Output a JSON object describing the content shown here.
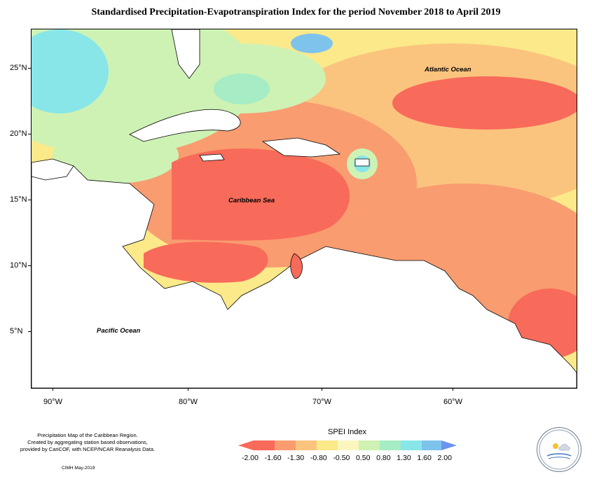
{
  "title": "Standardised Precipitation-Evapotranspiration Index for the period November 2018 to April 2019",
  "map": {
    "latitude_labels": [
      "25°N",
      "20°N",
      "15°N",
      "10°N",
      "5°N"
    ],
    "longitude_labels": [
      "90°W",
      "80°W",
      "70°W",
      "60°W"
    ],
    "region_labels": {
      "atlantic": "Atlantic Ocean",
      "caribbean": "Caribbean Sea",
      "pacific": "Pacific Ocean"
    }
  },
  "legend": {
    "title": "SPEI Index",
    "values": [
      "-2.00",
      "-1.60",
      "-1.30",
      "-0.80",
      "-0.50",
      "0.50",
      "0.80",
      "1.30",
      "1.60",
      "2.00"
    ],
    "colors": [
      "#f86a5a",
      "#f99c70",
      "#fbc47e",
      "#fbe98a",
      "#fbf6be",
      "#cef2b4",
      "#a6ecc4",
      "#88e6e8",
      "#7ec3ec",
      "#6b92ee"
    ]
  },
  "credits": {
    "line1": "Precipitation Map of the Caribbean Region.",
    "line2": "Created by aggregating station based observations,",
    "line3": "provided by CariCOF, with NCEP/NCAR Reanalysis Data.",
    "date": "CIMH May-2019"
  }
}
